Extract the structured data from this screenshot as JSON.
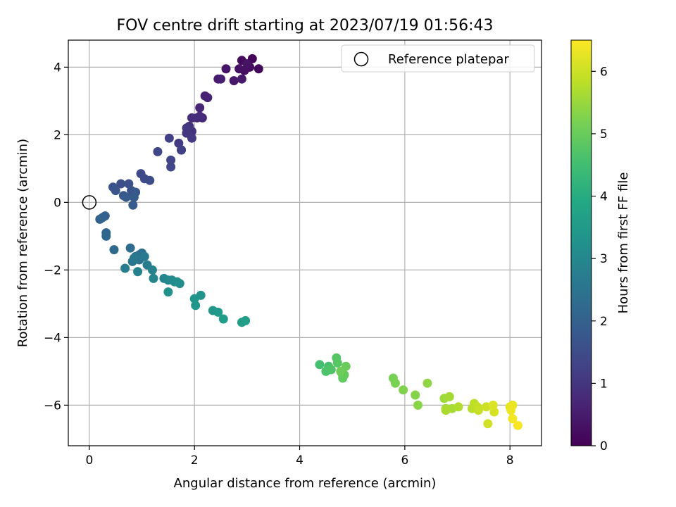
{
  "chart_data": {
    "type": "scatter",
    "title": "FOV centre drift starting at 2023/07/19 01:56:43",
    "xlabel": "Angular distance from reference (arcmin)",
    "ylabel": "Rotation from reference (arcmin)",
    "xlim": [
      -0.4,
      8.6
    ],
    "ylim": [
      -7.2,
      4.8
    ],
    "xticks": [
      0,
      2,
      4,
      6,
      8
    ],
    "yticks": [
      -6,
      -4,
      -2,
      0,
      2,
      4
    ],
    "xtick_labels": [
      "0",
      "2",
      "4",
      "6",
      "8"
    ],
    "ytick_labels": [
      "−6",
      "−4",
      "−2",
      "0",
      "2",
      "4"
    ],
    "grid": true,
    "legend": {
      "label": "Reference platepar",
      "placement": "top-right"
    },
    "reference_point": {
      "x": 0,
      "y": 0
    },
    "colorbar": {
      "label": "Hours from first FF file",
      "range": [
        0,
        6.5
      ],
      "ticks": [
        0,
        1,
        2,
        3,
        4,
        5,
        6
      ],
      "colormap": "viridis"
    },
    "series": [
      {
        "x": [
          3.1,
          3.22,
          2.9,
          3.05,
          2.95,
          2.85,
          3.0,
          2.6,
          2.75,
          2.9,
          2.45,
          2.5,
          2.2,
          2.25,
          2.1,
          2.15,
          2.1,
          2.05,
          1.95,
          1.85,
          1.9,
          1.95,
          1.85,
          1.85,
          1.95,
          1.7,
          1.75,
          1.75,
          1.52,
          1.55,
          1.55,
          1.3,
          0.98,
          1.05,
          1.15,
          0.6,
          0.75,
          0.8,
          0.45,
          0.5,
          0.65,
          0.88,
          0.85,
          0.7,
          0.83,
          0.3,
          0.25,
          0.2,
          0.32,
          0.32,
          0.47,
          0.78,
          0.95,
          1.0,
          0.88,
          0.95,
          0.82,
          0.85,
          1.05,
          1.1,
          0.68,
          0.92,
          1.2,
          1.22,
          1.42,
          1.5,
          1.57,
          1.62,
          1.72,
          1.67,
          1.5,
          2.12,
          2.0,
          2.02,
          2.35,
          2.45,
          2.55,
          2.9,
          2.97
        ],
        "y": [
          4.25,
          3.95,
          4.2,
          4.0,
          3.9,
          3.95,
          4.1,
          3.95,
          3.6,
          3.65,
          3.65,
          3.65,
          3.15,
          3.1,
          2.8,
          2.5,
          2.55,
          2.5,
          2.5,
          2.05,
          2.25,
          2.1,
          2.05,
          2.2,
          1.9,
          1.75,
          1.55,
          1.55,
          1.9,
          1.25,
          1.05,
          1.5,
          0.85,
          0.7,
          0.65,
          0.55,
          0.55,
          0.35,
          0.45,
          0.35,
          0.2,
          0.3,
          0.15,
          0.15,
          -0.08,
          -0.4,
          -0.45,
          -0.5,
          -0.9,
          -1.0,
          -1.4,
          -1.35,
          -1.55,
          -1.5,
          -1.6,
          -1.7,
          -1.75,
          -1.65,
          -1.6,
          -1.85,
          -1.95,
          -2.05,
          -2.0,
          -2.25,
          -2.25,
          -2.3,
          -2.3,
          -2.35,
          -2.4,
          -2.35,
          -2.65,
          -2.75,
          -2.85,
          -3.05,
          -3.2,
          -3.25,
          -3.45,
          -3.55,
          -3.5
        ],
        "hours": [
          0.1,
          0.14,
          0.18,
          0.22,
          0.26,
          0.3,
          0.34,
          0.38,
          0.42,
          0.46,
          0.5,
          0.54,
          0.6,
          0.64,
          0.7,
          0.74,
          0.78,
          0.82,
          0.86,
          0.9,
          0.94,
          0.98,
          1.02,
          1.06,
          1.1,
          1.14,
          1.18,
          1.22,
          1.26,
          1.3,
          1.34,
          1.38,
          1.42,
          1.46,
          1.5,
          1.54,
          1.58,
          1.62,
          1.66,
          1.7,
          1.74,
          1.78,
          1.82,
          1.86,
          1.9,
          1.95,
          2.0,
          2.05,
          2.1,
          2.15,
          2.2,
          2.3,
          2.35,
          2.4,
          2.45,
          2.5,
          2.55,
          2.6,
          2.65,
          2.7,
          2.75,
          2.8,
          2.85,
          2.9,
          2.95,
          3.0,
          3.05,
          3.1,
          3.15,
          3.2,
          3.25,
          3.3,
          3.35,
          3.4,
          3.45,
          3.5,
          3.55,
          3.6,
          3.65
        ]
      },
      {
        "x": [
          4.38,
          4.55,
          4.5,
          4.6,
          4.7,
          4.72,
          4.8,
          4.82,
          4.85,
          4.88,
          4.78,
          5.78,
          5.82,
          5.97,
          6.2,
          6.25,
          6.43,
          6.75,
          6.78,
          6.85,
          6.9,
          6.78,
          7.02,
          7.28,
          7.32,
          7.38,
          7.4,
          7.55,
          7.58,
          7.7,
          7.68,
          8.0,
          8.05,
          8.02,
          8.05,
          8.15
        ],
        "y": [
          -4.8,
          -4.85,
          -5.0,
          -4.95,
          -4.6,
          -4.75,
          -5.05,
          -5.2,
          -5.1,
          -4.85,
          -5.0,
          -5.2,
          -5.35,
          -5.55,
          -5.7,
          -6.0,
          -5.35,
          -5.8,
          -6.1,
          -5.75,
          -6.1,
          -6.15,
          -6.05,
          -6.1,
          -5.95,
          -6.05,
          -6.15,
          -6.05,
          -6.55,
          -6.2,
          -6.0,
          -6.05,
          -6.0,
          -6.15,
          -6.4,
          -6.6
        ],
        "hours": [
          4.55,
          4.6,
          4.65,
          4.7,
          4.75,
          4.8,
          4.85,
          4.9,
          4.95,
          5.0,
          5.05,
          5.15,
          5.2,
          5.25,
          5.3,
          5.35,
          5.4,
          5.55,
          5.6,
          5.62,
          5.65,
          5.68,
          5.72,
          5.8,
          5.85,
          5.9,
          5.95,
          6.0,
          6.05,
          6.1,
          6.15,
          6.25,
          6.3,
          6.35,
          6.4,
          6.45
        ]
      }
    ]
  }
}
